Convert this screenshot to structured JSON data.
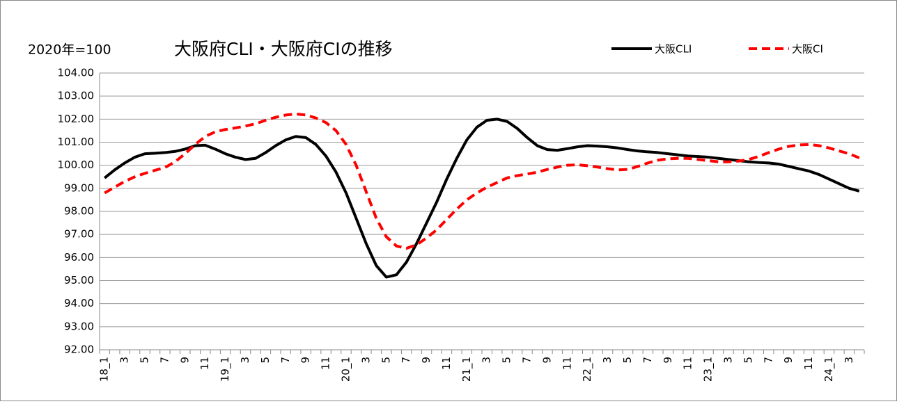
{
  "chart_data": {
    "type": "line",
    "title": "大阪府CLI・大阪府CIの推移",
    "annotation": "2020年=100",
    "categories": [
      "18_1",
      null,
      "3",
      null,
      "5",
      null,
      "7",
      null,
      "9",
      null,
      "11",
      null,
      "19_1",
      null,
      "3",
      null,
      "5",
      null,
      "7",
      null,
      "9",
      null,
      "11",
      null,
      "20_1",
      null,
      "3",
      null,
      "5",
      null,
      "7",
      null,
      "9",
      null,
      "11",
      null,
      "21_1",
      null,
      "3",
      null,
      "5",
      null,
      "7",
      null,
      "9",
      null,
      "11",
      null,
      "22_1",
      null,
      "3",
      null,
      "5",
      null,
      "7",
      null,
      "9",
      null,
      "11",
      null,
      "23_1",
      null,
      "3",
      null,
      "5",
      null,
      "7",
      null,
      "9",
      null,
      "11",
      null,
      "24_1",
      null,
      "3",
      null
    ],
    "series": [
      {
        "name": "大阪CLI",
        "color": "#000000",
        "dash": false,
        "values": [
          99.45,
          99.8,
          100.1,
          100.35,
          100.5,
          100.52,
          100.55,
          100.6,
          100.7,
          100.85,
          100.87,
          100.7,
          100.5,
          100.35,
          100.25,
          100.3,
          100.55,
          100.85,
          101.1,
          101.25,
          101.2,
          100.9,
          100.4,
          99.7,
          98.8,
          97.7,
          96.6,
          95.65,
          95.15,
          95.25,
          95.8,
          96.6,
          97.5,
          98.4,
          99.4,
          100.3,
          101.1,
          101.65,
          101.95,
          102.0,
          101.9,
          101.6,
          101.2,
          100.85,
          100.68,
          100.65,
          100.72,
          100.8,
          100.85,
          100.83,
          100.8,
          100.75,
          100.68,
          100.62,
          100.58,
          100.55,
          100.5,
          100.45,
          100.4,
          100.38,
          100.35,
          100.3,
          100.25,
          100.2,
          100.15,
          100.12,
          100.1,
          100.05,
          99.95,
          99.85,
          99.75,
          99.6,
          99.4,
          99.2,
          99.0,
          98.88
        ]
      },
      {
        "name": "大阪CI",
        "color": "#ff0000",
        "dash": true,
        "values": [
          98.8,
          99.05,
          99.3,
          99.5,
          99.65,
          99.78,
          99.9,
          100.15,
          100.5,
          100.9,
          101.25,
          101.45,
          101.55,
          101.62,
          101.7,
          101.8,
          101.95,
          102.08,
          102.18,
          102.22,
          102.18,
          102.05,
          101.85,
          101.5,
          100.9,
          100.0,
          98.85,
          97.7,
          96.9,
          96.5,
          96.4,
          96.55,
          96.85,
          97.2,
          97.65,
          98.1,
          98.5,
          98.8,
          99.05,
          99.25,
          99.45,
          99.55,
          99.62,
          99.7,
          99.82,
          99.92,
          100.0,
          100.02,
          99.98,
          99.92,
          99.85,
          99.8,
          99.82,
          99.95,
          100.1,
          100.22,
          100.28,
          100.3,
          100.3,
          100.25,
          100.2,
          100.15,
          100.15,
          100.18,
          100.25,
          100.38,
          100.55,
          100.7,
          100.82,
          100.88,
          100.9,
          100.85,
          100.75,
          100.62,
          100.5,
          100.32
        ]
      }
    ],
    "ylim": [
      92,
      104
    ],
    "yticks": [
      {
        "value": 92,
        "label": "92.00"
      },
      {
        "value": 93,
        "label": "93.00"
      },
      {
        "value": 94,
        "label": "94.00"
      },
      {
        "value": 95,
        "label": "95.00"
      },
      {
        "value": 96,
        "label": "96.00"
      },
      {
        "value": 97,
        "label": "97.00"
      },
      {
        "value": 98,
        "label": "98.00"
      },
      {
        "value": 99,
        "label": "99.00"
      },
      {
        "value": 100,
        "label": "100.00"
      },
      {
        "value": 101,
        "label": "101.00"
      },
      {
        "value": 102,
        "label": "102.00"
      },
      {
        "value": 103,
        "label": "103.00"
      },
      {
        "value": 104,
        "label": "104.00"
      }
    ],
    "grid": true,
    "legend": "top-right"
  }
}
